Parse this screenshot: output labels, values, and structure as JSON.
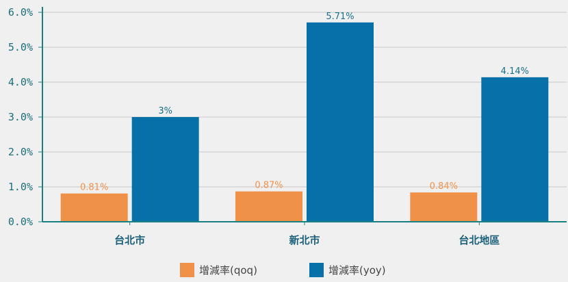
{
  "chart_data": {
    "type": "bar",
    "categories": [
      "台北市",
      "新北市",
      "台北地區"
    ],
    "series": [
      {
        "name": "增減率(qoq)",
        "values": [
          0.81,
          0.87,
          0.84
        ],
        "labels": [
          "0.81%",
          "0.87%",
          "0.84%"
        ],
        "color": "#f0914a",
        "label_color": "#f0914a"
      },
      {
        "name": "增減率(yoy)",
        "values": [
          3.0,
          5.71,
          4.14
        ],
        "labels": [
          "3%",
          "5.71%",
          "4.14%"
        ],
        "color": "#0870a8",
        "label_color": "#1a6f8a"
      }
    ],
    "yticks": [
      "0.0%",
      "1.0%",
      "2.0%",
      "3.0%",
      "4.0%",
      "5.0%",
      "6.0%"
    ],
    "ylim": [
      0,
      6
    ],
    "grid": true,
    "legend_position": "bottom",
    "axis_color": "#1a7f80",
    "grid_color": "#c8c8c8"
  }
}
